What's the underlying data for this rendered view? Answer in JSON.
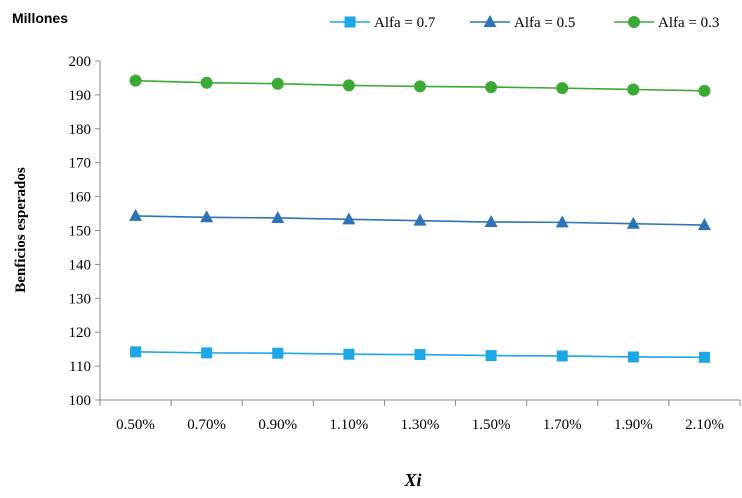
{
  "chart_data": {
    "type": "line",
    "units_label": "Millones",
    "xlabel": "Xi",
    "ylabel": "Benficios esperados",
    "categories": [
      "0.50%",
      "0.70%",
      "0.90%",
      "1.10%",
      "1.30%",
      "1.50%",
      "1.70%",
      "1.90%",
      "2.10%"
    ],
    "ylim": [
      100,
      200
    ],
    "yticks": [
      "100",
      "110",
      "120",
      "130",
      "140",
      "150",
      "160",
      "170",
      "180",
      "190",
      "200"
    ],
    "grid": false,
    "legend_position": "top",
    "series": [
      {
        "name": "Alfa = 0.7",
        "marker": "square",
        "color": "#1ea7e6",
        "values": [
          114.2,
          113.9,
          113.8,
          113.5,
          113.4,
          113.1,
          113.0,
          112.7,
          112.6
        ]
      },
      {
        "name": "Alfa = 0.5",
        "marker": "triangle",
        "color": "#2e74b5",
        "values": [
          154.3,
          153.9,
          153.7,
          153.3,
          152.9,
          152.5,
          152.4,
          152.0,
          151.6
        ]
      },
      {
        "name": "Alfa = 0.3",
        "marker": "circle",
        "color": "#3aaa35",
        "values": [
          194.2,
          193.6,
          193.3,
          192.8,
          192.5,
          192.3,
          192.0,
          191.6,
          191.2
        ]
      }
    ]
  }
}
